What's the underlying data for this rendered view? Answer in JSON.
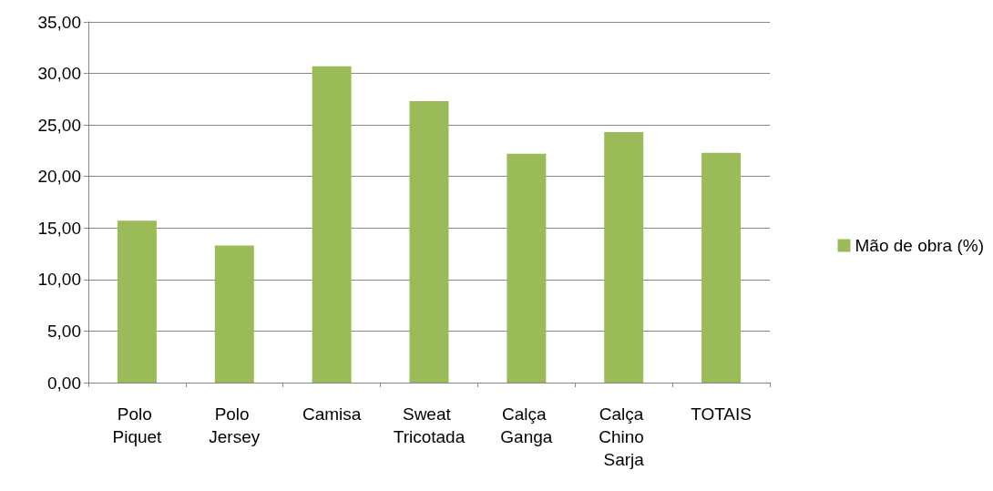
{
  "chart_data": {
    "type": "bar",
    "categories": [
      "Polo Piquet",
      "Polo Jersey",
      "Camisa",
      "Sweat Tricotada",
      "Calça Ganga",
      "Calça Chino Sarja",
      "TOTAIS"
    ],
    "series": [
      {
        "name": "Mão de obra (%)",
        "color": "#9bbb59",
        "values": [
          15.7,
          13.3,
          30.7,
          27.3,
          22.2,
          24.3,
          22.3
        ]
      }
    ],
    "ylim": [
      0,
      35
    ],
    "yticks": [
      {
        "value": 0,
        "label": "0,00"
      },
      {
        "value": 5,
        "label": "5,00"
      },
      {
        "value": 10,
        "label": "10,00"
      },
      {
        "value": 15,
        "label": "15,00"
      },
      {
        "value": 20,
        "label": "20,00"
      },
      {
        "value": 25,
        "label": "25,00"
      },
      {
        "value": 30,
        "label": "30,00"
      },
      {
        "value": 35,
        "label": "35,00"
      }
    ],
    "grid": "y",
    "legend": "right"
  }
}
